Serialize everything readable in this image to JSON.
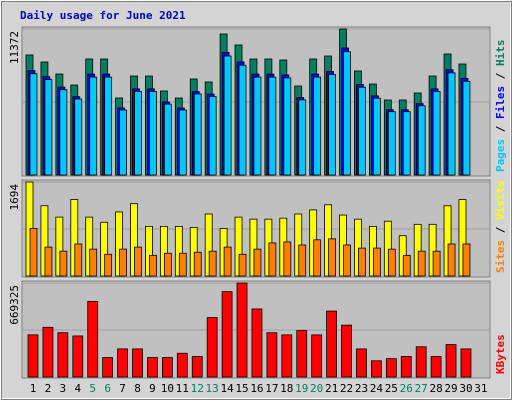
{
  "chart_data": [
    {
      "type": "bar",
      "title": "Daily usage for June 2021",
      "ylim": [
        0,
        11372
      ],
      "yticks": [
        11372
      ],
      "legend_separator": " / ",
      "series": [
        {
          "name": "Hits",
          "color": "#008060",
          "values": [
            9347,
            8802,
            7867,
            7010,
            9035,
            9035,
            5998,
            7711,
            7711,
            6543,
            5998,
            7478,
            7244,
            10983,
            10126,
            9035,
            9035,
            8957,
            6932,
            9035,
            9269,
            11372,
            8101,
            7088,
            5842,
            5842,
            6387,
            7711,
            9425,
            8646,
            0
          ]
        },
        {
          "name": "Files",
          "color": "#0000ff",
          "values": [
            8132,
            7658,
            6844,
            6099,
            7860,
            7860,
            5218,
            6709,
            6709,
            5692,
            5218,
            6506,
            6302,
            9555,
            8810,
            7860,
            7860,
            7793,
            6031,
            7860,
            8064,
            9894,
            7048,
            6167,
            5083,
            5083,
            5557,
            6709,
            8200,
            7522,
            0
          ]
        },
        {
          "name": "Pages",
          "color": "#00c8ff",
          "values": [
            7888,
            7428,
            6639,
            5916,
            7624,
            7624,
            5061,
            6508,
            6508,
            5521,
            5061,
            6311,
            6113,
            9268,
            8546,
            7624,
            7624,
            7559,
            5850,
            7624,
            7822,
            9597,
            6837,
            5982,
            4931,
            4931,
            5390,
            6508,
            7954,
            7296,
            0
          ]
        }
      ]
    },
    {
      "type": "bar",
      "ylim": [
        0,
        1694
      ],
      "yticks": [
        1694
      ],
      "legend_separator": " / ",
      "series": [
        {
          "name": "Visits",
          "color": "#ffff00",
          "values": [
            1694,
            1266,
            1061,
            1378,
            1061,
            968,
            1154,
            1303,
            894,
            894,
            894,
            875,
            1117,
            856,
            1061,
            1024,
            1024,
            1042,
            1117,
            1191,
            1284,
            1098,
            1024,
            894,
            987,
            726,
            931,
            931,
            1266,
            1378,
            0
          ]
        },
        {
          "name": "Sites",
          "color": "#ff8000",
          "values": [
            856,
            521,
            447,
            577,
            484,
            391,
            484,
            521,
            372,
            410,
            410,
            428,
            447,
            521,
            391,
            484,
            596,
            614,
            559,
            652,
            670,
            559,
            503,
            503,
            484,
            372,
            447,
            447,
            577,
            577,
            0
          ]
        }
      ]
    },
    {
      "type": "bar",
      "ylim": [
        0,
        669325
      ],
      "yticks": [
        669325
      ],
      "categories": [
        "1",
        "2",
        "3",
        "4",
        "5",
        "6",
        "7",
        "8",
        "9",
        "10",
        "11",
        "12",
        "13",
        "14",
        "15",
        "16",
        "17",
        "18",
        "19",
        "20",
        "21",
        "22",
        "23",
        "24",
        "25",
        "26",
        "27",
        "28",
        "29",
        "30",
        "31"
      ],
      "category_colors": [
        "#000000",
        "#000000",
        "#000000",
        "#000000",
        "#008060",
        "#008060",
        "#000000",
        "#000000",
        "#000000",
        "#000000",
        "#000000",
        "#008060",
        "#008060",
        "#000000",
        "#000000",
        "#000000",
        "#000000",
        "#000000",
        "#008060",
        "#008060",
        "#000000",
        "#000000",
        "#000000",
        "#000000",
        "#000000",
        "#008060",
        "#008060",
        "#000000",
        "#000000",
        "#000000",
        "#000000"
      ],
      "series": [
        {
          "name": "KBytes",
          "color": "#ff0000",
          "values": [
            300065,
            353918,
            315453,
            292372,
            538538,
            138482,
            200030,
            200030,
            138482,
            138482,
            169256,
            146176,
            423137,
            607778,
            669325,
            484684,
            315453,
            300065,
            330822,
            300065,
            469297,
            369305,
            200030,
            115401,
            130789,
            146176,
            215418,
            146176,
            230806,
            200030,
            0
          ]
        }
      ]
    }
  ]
}
